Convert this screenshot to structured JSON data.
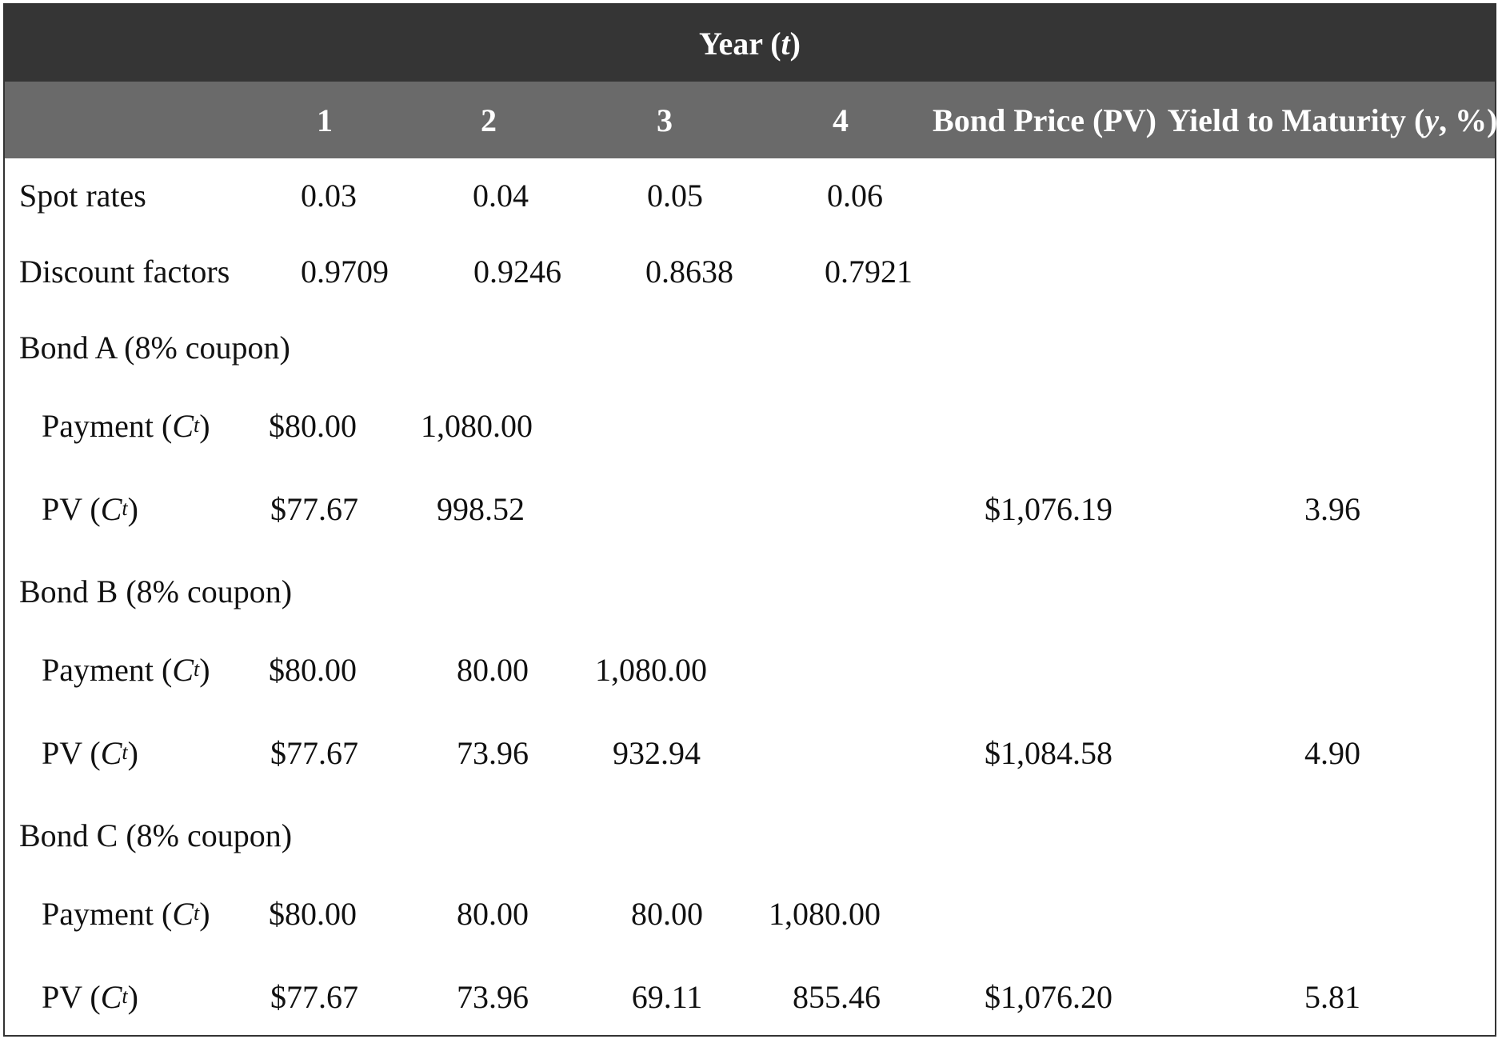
{
  "table": {
    "title_prefix": "Year (",
    "title_var": "t",
    "title_suffix": ")",
    "columns": [
      "1",
      "2",
      "3",
      "4",
      "Bond Price (PV)"
    ],
    "ytm_prefix": "Yield to Maturity (",
    "ytm_var": "y",
    "ytm_suffix": ", %)",
    "spot": {
      "label": "Spot rates",
      "values": [
        "0.03",
        "0.04",
        "0.05",
        "0.06"
      ]
    },
    "discount": {
      "label": "Discount factors",
      "values": [
        "0.9709",
        "0.9246",
        "0.8638",
        "0.7921"
      ]
    },
    "payment_label_prefix": "Payment (",
    "pv_label_prefix": "PV (",
    "label_var": "C",
    "label_sub": "t",
    "label_suffix": ")",
    "bonds": [
      {
        "label": "Bond A (8% coupon)",
        "payments": [
          "$80.00",
          "1,080.00",
          "",
          ""
        ],
        "pvs": [
          "$77.67",
          "998.52",
          "",
          ""
        ],
        "price": "$1,076.19",
        "ytm": "3.96"
      },
      {
        "label": "Bond B (8% coupon)",
        "payments": [
          "$80.00",
          "80.00",
          "1,080.00",
          ""
        ],
        "pvs": [
          "$77.67",
          "73.96",
          "932.94",
          ""
        ],
        "price": "$1,084.58",
        "ytm": "4.90"
      },
      {
        "label": "Bond C (8% coupon)",
        "payments": [
          "$80.00",
          "80.00",
          "80.00",
          "1,080.00"
        ],
        "pvs": [
          "$77.67",
          "73.96",
          "69.11",
          "855.46"
        ],
        "price": "$1,076.20",
        "ytm": "5.81"
      }
    ]
  }
}
